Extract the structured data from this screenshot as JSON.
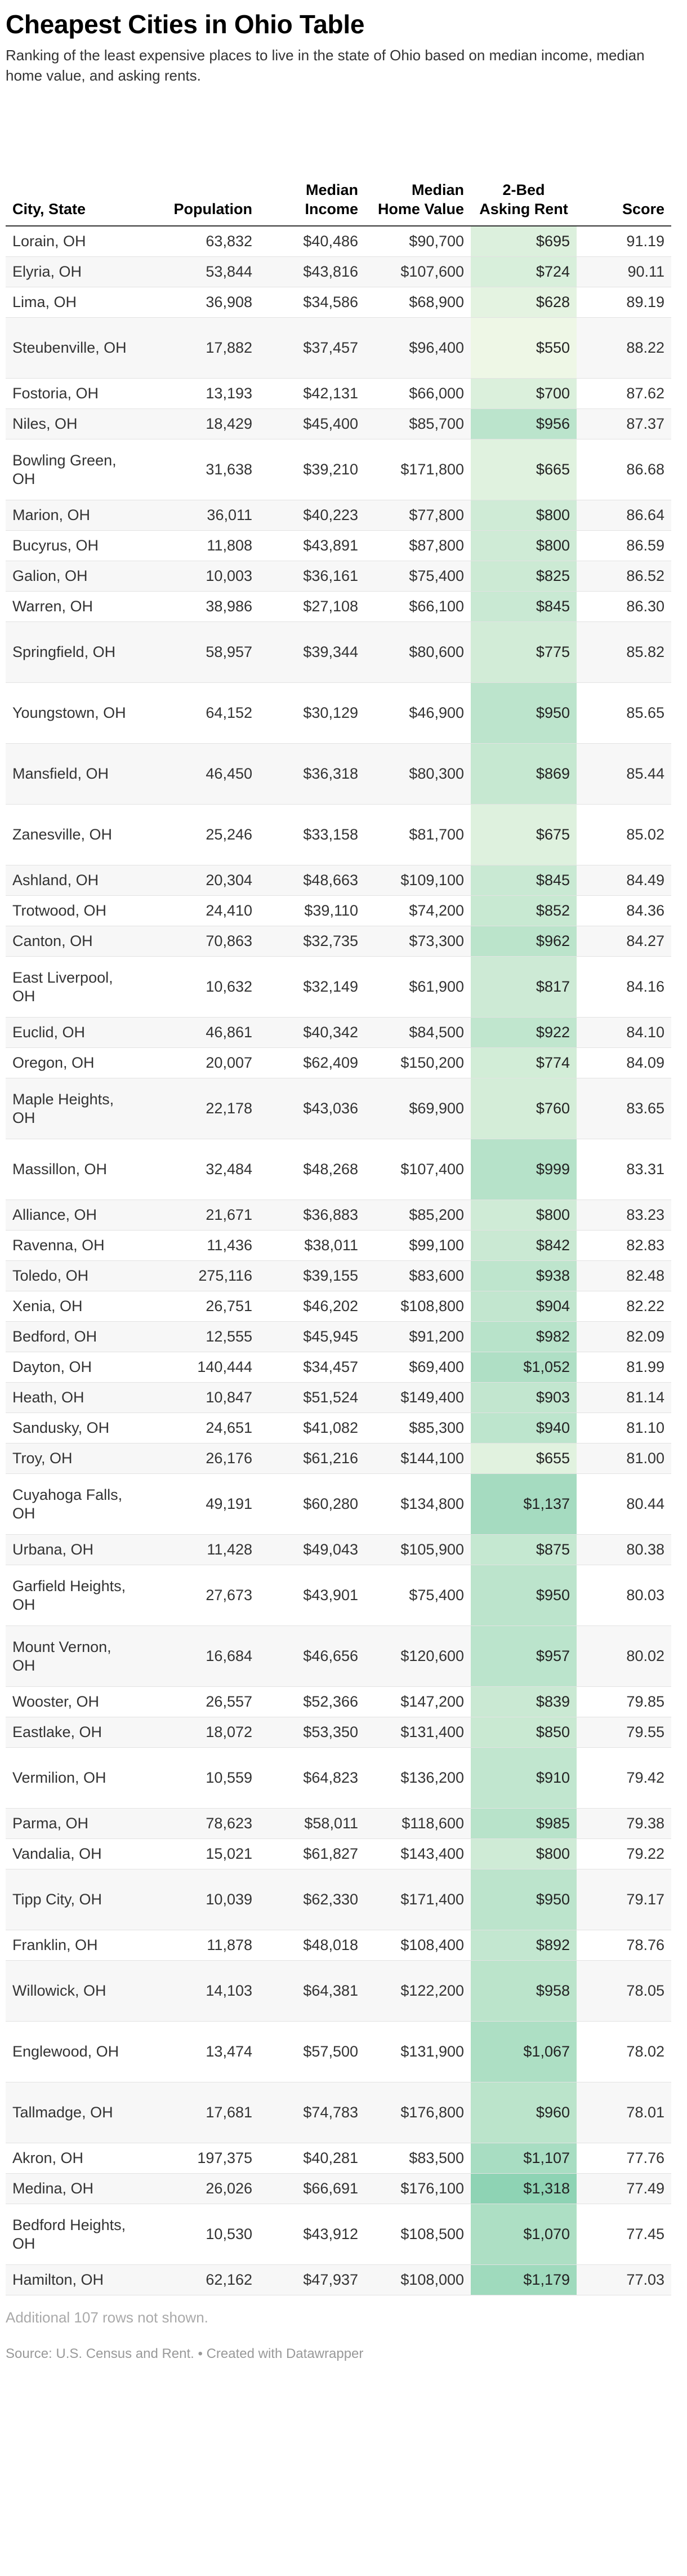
{
  "header": {
    "title": "Cheapest Cities in Ohio Table",
    "subtitle": "Ranking of the least expensive places to live in the state of Ohio based on median income, median home value, and asking rents."
  },
  "columns": {
    "city": "City, State",
    "population": "Population",
    "income": "Median Income",
    "home": "Median Home Value",
    "rent": "2-Bed Asking Rent",
    "score": "Score"
  },
  "colors": {
    "rent_low": "#eef7e6",
    "rent_high": "#8ed3b4",
    "stripe": "#f7f7f7",
    "rule": "#333333"
  },
  "rent_scale": [
    550,
    1318
  ],
  "chart_data": {
    "type": "table",
    "title": "Cheapest Cities in Ohio Table",
    "rows": [
      {
        "city": "Lorain, OH",
        "population": "63,832",
        "income": "$40,486",
        "home": "$90,700",
        "rent": "$695",
        "rent_value": 695,
        "score": "91.19"
      },
      {
        "city": "Elyria, OH",
        "population": "53,844",
        "income": "$43,816",
        "home": "$107,600",
        "rent": "$724",
        "rent_value": 724,
        "score": "90.11"
      },
      {
        "city": "Lima, OH",
        "population": "36,908",
        "income": "$34,586",
        "home": "$68,900",
        "rent": "$628",
        "rent_value": 628,
        "score": "89.19"
      },
      {
        "city": "Steubenville, OH",
        "population": "17,882",
        "income": "$37,457",
        "home": "$96,400",
        "rent": "$550",
        "rent_value": 550,
        "score": "88.22"
      },
      {
        "city": "Fostoria, OH",
        "population": "13,193",
        "income": "$42,131",
        "home": "$66,000",
        "rent": "$700",
        "rent_value": 700,
        "score": "87.62"
      },
      {
        "city": "Niles, OH",
        "population": "18,429",
        "income": "$45,400",
        "home": "$85,700",
        "rent": "$956",
        "rent_value": 956,
        "score": "87.37"
      },
      {
        "city": "Bowling Green, OH",
        "population": "31,638",
        "income": "$39,210",
        "home": "$171,800",
        "rent": "$665",
        "rent_value": 665,
        "score": "86.68"
      },
      {
        "city": "Marion, OH",
        "population": "36,011",
        "income": "$40,223",
        "home": "$77,800",
        "rent": "$800",
        "rent_value": 800,
        "score": "86.64"
      },
      {
        "city": "Bucyrus, OH",
        "population": "11,808",
        "income": "$43,891",
        "home": "$87,800",
        "rent": "$800",
        "rent_value": 800,
        "score": "86.59"
      },
      {
        "city": "Galion, OH",
        "population": "10,003",
        "income": "$36,161",
        "home": "$75,400",
        "rent": "$825",
        "rent_value": 825,
        "score": "86.52"
      },
      {
        "city": "Warren, OH",
        "population": "38,986",
        "income": "$27,108",
        "home": "$66,100",
        "rent": "$845",
        "rent_value": 845,
        "score": "86.30"
      },
      {
        "city": "Springfield, OH",
        "population": "58,957",
        "income": "$39,344",
        "home": "$80,600",
        "rent": "$775",
        "rent_value": 775,
        "score": "85.82"
      },
      {
        "city": "Youngstown, OH",
        "population": "64,152",
        "income": "$30,129",
        "home": "$46,900",
        "rent": "$950",
        "rent_value": 950,
        "score": "85.65"
      },
      {
        "city": "Mansfield, OH",
        "population": "46,450",
        "income": "$36,318",
        "home": "$80,300",
        "rent": "$869",
        "rent_value": 869,
        "score": "85.44"
      },
      {
        "city": "Zanesville, OH",
        "population": "25,246",
        "income": "$33,158",
        "home": "$81,700",
        "rent": "$675",
        "rent_value": 675,
        "score": "85.02"
      },
      {
        "city": "Ashland, OH",
        "population": "20,304",
        "income": "$48,663",
        "home": "$109,100",
        "rent": "$845",
        "rent_value": 845,
        "score": "84.49"
      },
      {
        "city": "Trotwood, OH",
        "population": "24,410",
        "income": "$39,110",
        "home": "$74,200",
        "rent": "$852",
        "rent_value": 852,
        "score": "84.36"
      },
      {
        "city": "Canton, OH",
        "population": "70,863",
        "income": "$32,735",
        "home": "$73,300",
        "rent": "$962",
        "rent_value": 962,
        "score": "84.27"
      },
      {
        "city": "East Liverpool, OH",
        "population": "10,632",
        "income": "$32,149",
        "home": "$61,900",
        "rent": "$817",
        "rent_value": 817,
        "score": "84.16"
      },
      {
        "city": "Euclid, OH",
        "population": "46,861",
        "income": "$40,342",
        "home": "$84,500",
        "rent": "$922",
        "rent_value": 922,
        "score": "84.10"
      },
      {
        "city": "Oregon, OH",
        "population": "20,007",
        "income": "$62,409",
        "home": "$150,200",
        "rent": "$774",
        "rent_value": 774,
        "score": "84.09"
      },
      {
        "city": "Maple Heights, OH",
        "population": "22,178",
        "income": "$43,036",
        "home": "$69,900",
        "rent": "$760",
        "rent_value": 760,
        "score": "83.65"
      },
      {
        "city": "Massillon, OH",
        "population": "32,484",
        "income": "$48,268",
        "home": "$107,400",
        "rent": "$999",
        "rent_value": 999,
        "score": "83.31"
      },
      {
        "city": "Alliance, OH",
        "population": "21,671",
        "income": "$36,883",
        "home": "$85,200",
        "rent": "$800",
        "rent_value": 800,
        "score": "83.23"
      },
      {
        "city": "Ravenna, OH",
        "population": "11,436",
        "income": "$38,011",
        "home": "$99,100",
        "rent": "$842",
        "rent_value": 842,
        "score": "82.83"
      },
      {
        "city": "Toledo, OH",
        "population": "275,116",
        "income": "$39,155",
        "home": "$83,600",
        "rent": "$938",
        "rent_value": 938,
        "score": "82.48"
      },
      {
        "city": "Xenia, OH",
        "population": "26,751",
        "income": "$46,202",
        "home": "$108,800",
        "rent": "$904",
        "rent_value": 904,
        "score": "82.22"
      },
      {
        "city": "Bedford, OH",
        "population": "12,555",
        "income": "$45,945",
        "home": "$91,200",
        "rent": "$982",
        "rent_value": 982,
        "score": "82.09"
      },
      {
        "city": "Dayton, OH",
        "population": "140,444",
        "income": "$34,457",
        "home": "$69,400",
        "rent": "$1,052",
        "rent_value": 1052,
        "score": "81.99"
      },
      {
        "city": "Heath, OH",
        "population": "10,847",
        "income": "$51,524",
        "home": "$149,400",
        "rent": "$903",
        "rent_value": 903,
        "score": "81.14"
      },
      {
        "city": "Sandusky, OH",
        "population": "24,651",
        "income": "$41,082",
        "home": "$85,300",
        "rent": "$940",
        "rent_value": 940,
        "score": "81.10"
      },
      {
        "city": "Troy, OH",
        "population": "26,176",
        "income": "$61,216",
        "home": "$144,100",
        "rent": "$655",
        "rent_value": 655,
        "score": "81.00"
      },
      {
        "city": "Cuyahoga Falls, OH",
        "population": "49,191",
        "income": "$60,280",
        "home": "$134,800",
        "rent": "$1,137",
        "rent_value": 1137,
        "score": "80.44"
      },
      {
        "city": "Urbana, OH",
        "population": "11,428",
        "income": "$49,043",
        "home": "$105,900",
        "rent": "$875",
        "rent_value": 875,
        "score": "80.38"
      },
      {
        "city": "Garfield Heights, OH",
        "population": "27,673",
        "income": "$43,901",
        "home": "$75,400",
        "rent": "$950",
        "rent_value": 950,
        "score": "80.03"
      },
      {
        "city": "Mount Vernon, OH",
        "population": "16,684",
        "income": "$46,656",
        "home": "$120,600",
        "rent": "$957",
        "rent_value": 957,
        "score": "80.02"
      },
      {
        "city": "Wooster, OH",
        "population": "26,557",
        "income": "$52,366",
        "home": "$147,200",
        "rent": "$839",
        "rent_value": 839,
        "score": "79.85"
      },
      {
        "city": "Eastlake, OH",
        "population": "18,072",
        "income": "$53,350",
        "home": "$131,400",
        "rent": "$850",
        "rent_value": 850,
        "score": "79.55"
      },
      {
        "city": "Vermilion, OH",
        "population": "10,559",
        "income": "$64,823",
        "home": "$136,200",
        "rent": "$910",
        "rent_value": 910,
        "score": "79.42"
      },
      {
        "city": "Parma, OH",
        "population": "78,623",
        "income": "$58,011",
        "home": "$118,600",
        "rent": "$985",
        "rent_value": 985,
        "score": "79.38"
      },
      {
        "city": "Vandalia, OH",
        "population": "15,021",
        "income": "$61,827",
        "home": "$143,400",
        "rent": "$800",
        "rent_value": 800,
        "score": "79.22"
      },
      {
        "city": "Tipp City, OH",
        "population": "10,039",
        "income": "$62,330",
        "home": "$171,400",
        "rent": "$950",
        "rent_value": 950,
        "score": "79.17"
      },
      {
        "city": "Franklin, OH",
        "population": "11,878",
        "income": "$48,018",
        "home": "$108,400",
        "rent": "$892",
        "rent_value": 892,
        "score": "78.76"
      },
      {
        "city": "Willowick, OH",
        "population": "14,103",
        "income": "$64,381",
        "home": "$122,200",
        "rent": "$958",
        "rent_value": 958,
        "score": "78.05"
      },
      {
        "city": "Englewood, OH",
        "population": "13,474",
        "income": "$57,500",
        "home": "$131,900",
        "rent": "$1,067",
        "rent_value": 1067,
        "score": "78.02"
      },
      {
        "city": "Tallmadge, OH",
        "population": "17,681",
        "income": "$74,783",
        "home": "$176,800",
        "rent": "$960",
        "rent_value": 960,
        "score": "78.01"
      },
      {
        "city": "Akron, OH",
        "population": "197,375",
        "income": "$40,281",
        "home": "$83,500",
        "rent": "$1,107",
        "rent_value": 1107,
        "score": "77.76"
      },
      {
        "city": "Medina, OH",
        "population": "26,026",
        "income": "$66,691",
        "home": "$176,100",
        "rent": "$1,318",
        "rent_value": 1318,
        "score": "77.49"
      },
      {
        "city": "Bedford Heights, OH",
        "population": "10,530",
        "income": "$43,912",
        "home": "$108,500",
        "rent": "$1,070",
        "rent_value": 1070,
        "score": "77.45"
      },
      {
        "city": "Hamilton, OH",
        "population": "62,162",
        "income": "$47,937",
        "home": "$108,000",
        "rent": "$1,179",
        "rent_value": 1179,
        "score": "77.03"
      }
    ]
  },
  "footer": {
    "note": "Additional 107 rows not shown.",
    "source": "Source: U.S. Census and Rent. • Created with Datawrapper"
  }
}
